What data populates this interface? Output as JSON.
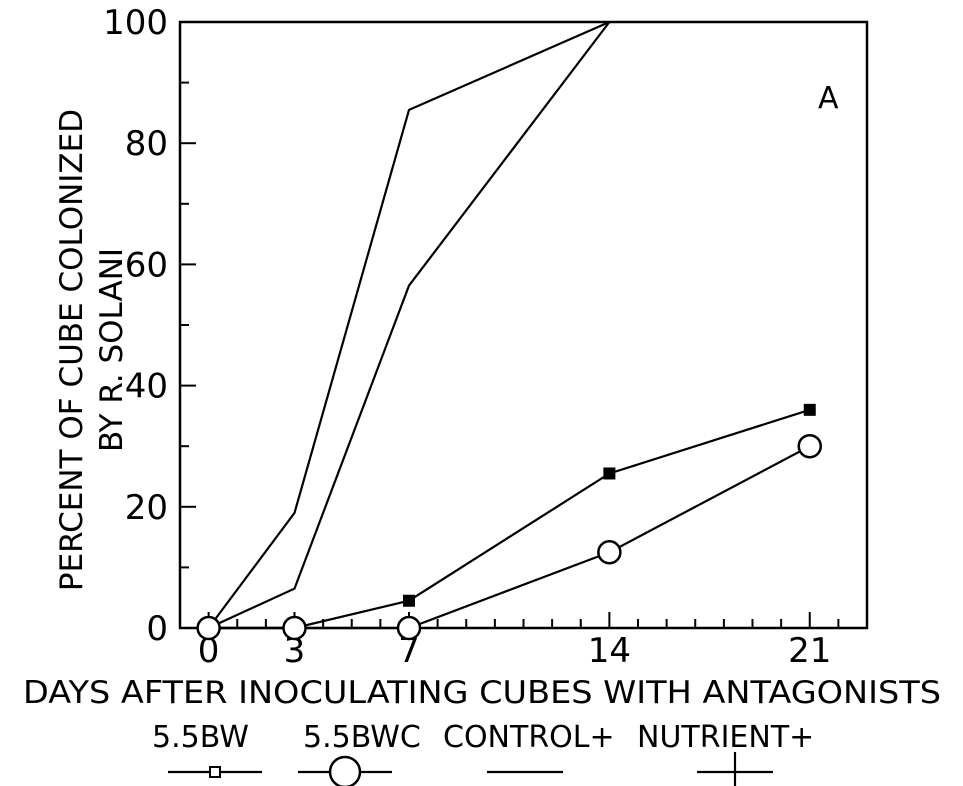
{
  "chart_data": {
    "type": "line",
    "title": "",
    "panel_label": "A",
    "xlabel": "DAYS AFTER INOCULATING CUBES WITH ANTAGONISTS",
    "ylabel_line1": "PERCENT OF CUBE COLONIZED",
    "ylabel_line2": "BY R. SOLANI",
    "xlim": [
      -1,
      23
    ],
    "ylim": [
      0,
      100
    ],
    "x_ticks": [
      0,
      3,
      7,
      14,
      21
    ],
    "x_tick_labels": [
      "0",
      "3",
      "7",
      "14",
      "21"
    ],
    "y_ticks": [
      0,
      20,
      40,
      60,
      80,
      100
    ],
    "y_tick_labels": [
      "0",
      "20",
      "40",
      "60",
      "80",
      "100"
    ],
    "grid": false,
    "legend_position": "bottom",
    "series": [
      {
        "name": "5.5BW",
        "marker": "filled-square",
        "x": [
          0,
          3,
          7,
          14,
          21
        ],
        "y": [
          0,
          0,
          4.5,
          25.5,
          36
        ]
      },
      {
        "name": "5.5BWC",
        "marker": "open-circle",
        "x": [
          0,
          3,
          7,
          14,
          21
        ],
        "y": [
          0,
          0,
          0,
          12.5,
          30
        ]
      },
      {
        "name": "CONTROL+",
        "marker": "none",
        "x": [
          0,
          3,
          7,
          14
        ],
        "y": [
          0,
          19,
          85.5,
          100
        ]
      },
      {
        "name": "NUTRIENT+",
        "marker": "plus",
        "x": [
          0,
          3,
          7,
          14
        ],
        "y": [
          0,
          6.5,
          56.5,
          100
        ]
      }
    ]
  }
}
